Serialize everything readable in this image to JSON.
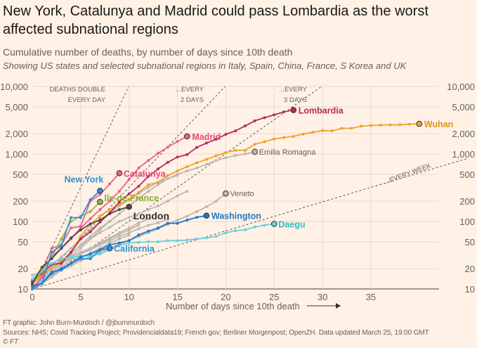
{
  "title": "New York, Catalunya and Madrid could pass Lombardia as the worst affected subnational regions",
  "subtitle": "Cumulative number of deaths, by number of days since 10th death",
  "subtitle2": "Showing US states and selected subnational regions in Italy, Spain, China, France, S Korea and UK",
  "footer": {
    "credit": "FT graphic: John Burn-Murdoch / @jburnmurdoch",
    "sources": "Sources: NHS; Covid Tracking Project; Providencialdata19; French gov; Berliner Morgenpost; OpenZH. Data updated March 25, 19:00 GMT",
    "copyright": "© FT"
  },
  "chart_data": {
    "type": "line",
    "xlabel": "Number of days since 10th death",
    "ylabel": "",
    "xlim": [
      0,
      43
    ],
    "ylim": [
      10,
      10000
    ],
    "yscale": "log",
    "grid": true,
    "xticks": [
      "0",
      "5",
      "10",
      "15",
      "20",
      "25",
      "30",
      "35"
    ],
    "yticks": [
      "10",
      "20",
      "50",
      "100",
      "200",
      "500",
      "1,000",
      "2,000",
      "5,000",
      "10,000"
    ],
    "reference_lines": [
      {
        "label1": "DEATHS DOUBLE",
        "label2": "EVERY DAY",
        "doubling_days": 1
      },
      {
        "label1": "...EVERY",
        "label2": "2 DAYS",
        "doubling_days": 2
      },
      {
        "label1": "...EVERY",
        "label2": "3 DAYS",
        "doubling_days": 3
      },
      {
        "label1": "...EVERY WEEK",
        "label2": "",
        "doubling_days": 7
      }
    ],
    "series": [
      {
        "color": "#bdb8b4",
        "values": [
          11,
          14,
          18,
          24,
          33,
          45,
          60,
          80,
          100,
          130,
          170,
          220,
          280
        ]
      },
      {
        "color": "#bdb8b4",
        "values": [
          12,
          15,
          20,
          26,
          34,
          44,
          55,
          68,
          82,
          100,
          115,
          130,
          150,
          170,
          200,
          240,
          280
        ]
      },
      {
        "color": "#bdb8b4",
        "values": [
          10,
          13,
          17,
          21,
          27,
          33,
          40,
          48,
          57,
          68,
          80,
          95,
          110
        ]
      },
      {
        "color": "#bdb8b4",
        "values": [
          14,
          17,
          20,
          24,
          28,
          33,
          38,
          45,
          52,
          60,
          68,
          78,
          88,
          95,
          108
        ]
      },
      {
        "color": "#bdb8b4",
        "values": [
          16,
          18,
          22,
          26,
          30,
          35,
          40,
          47,
          55,
          65,
          75,
          88
        ]
      },
      {
        "color": "#bdb8b4",
        "values": [
          11,
          12,
          15,
          19,
          23,
          28,
          34,
          40,
          48,
          55,
          63
        ]
      },
      {
        "color": "#bdb8b4",
        "values": [
          13,
          16,
          22,
          30,
          40,
          55,
          75,
          100,
          135,
          170,
          210,
          260,
          320,
          380,
          430,
          480
        ]
      },
      {
        "name": "Veneto",
        "color": "#bdb8b4",
        "label_color": "#66605c",
        "bold": false,
        "values": [
          11,
          13,
          16,
          19,
          22,
          26,
          30,
          35,
          40,
          46,
          52,
          60,
          68,
          78,
          90,
          105,
          120,
          140,
          165,
          200,
          260
        ]
      },
      {
        "name": "Emilia Romagna",
        "color": "#bdb8b4",
        "label_color": "#66605c",
        "bold": false,
        "values": [
          11,
          14,
          18,
          23,
          30,
          40,
          55,
          75,
          100,
          130,
          170,
          220,
          280,
          350,
          430,
          500,
          560,
          620,
          700,
          800,
          880,
          950,
          1000,
          1080
        ]
      },
      {
        "name": "Wuhan",
        "color": "#f2a22b",
        "label_color": "#e2901a",
        "bold": true,
        "values": [
          12,
          16,
          20,
          26,
          35,
          60,
          90,
          120,
          150,
          180,
          210,
          270,
          350,
          380,
          480,
          560,
          650,
          740,
          830,
          940,
          1050,
          1130,
          1130,
          1390,
          1520,
          1670,
          1750,
          1820,
          1970,
          2100,
          2220,
          2200,
          2400,
          2400,
          2580,
          2640,
          2680,
          2700,
          2710,
          2760,
          2800
        ]
      },
      {
        "name": "Lombardia",
        "color": "#b72b5b",
        "label_color": "#b72b5b",
        "bold": true,
        "values": [
          13,
          17,
          23,
          24,
          35,
          55,
          70,
          98,
          133,
          195,
          256,
          333,
          466,
          600,
          750,
          900,
          980,
          1250,
          1450,
          1650,
          1950,
          2200,
          2600,
          3100,
          3450,
          3800,
          4200,
          4474
        ]
      },
      {
        "name": "Madrid",
        "color": "#ec5f8f",
        "label_color": "#e5467c",
        "bold": true,
        "values": [
          10,
          15,
          30,
          40,
          55,
          80,
          110,
          150,
          200,
          280,
          420,
          620,
          800,
          1020,
          1260,
          1530,
          1825
        ]
      },
      {
        "name": "Catalunya",
        "color": "#ec5f8f",
        "label_color": "#e5467c",
        "bold": true,
        "values": [
          12,
          18,
          40,
          45,
          80,
          85,
          200,
          250,
          360,
          520
        ]
      },
      {
        "name": "Daegu",
        "color": "#67d1dc",
        "label_color": "#2fb9c6",
        "bold": true,
        "values": [
          14,
          20,
          24,
          28,
          30,
          30,
          31,
          33,
          38,
          44,
          48,
          49,
          50,
          50,
          52,
          52,
          53,
          55,
          57,
          60,
          68,
          73,
          75,
          83,
          88,
          92
        ]
      },
      {
        "name": "California",
        "color": "#2f8fd8",
        "label_color": "#2f8fd8",
        "bold": true,
        "values": [
          11,
          12,
          18,
          19,
          24,
          28,
          28,
          38,
          40
        ]
      },
      {
        "name": "Washington",
        "color": "#1f78c8",
        "label_color": "#1f78c8",
        "bold": true,
        "values": [
          11,
          12,
          17,
          20,
          24,
          30,
          33,
          38,
          45,
          48,
          52,
          63,
          72,
          80,
          94,
          94,
          105,
          115,
          122
        ]
      },
      {
        "name": "Ile-de-France",
        "color": "#96b840",
        "label_color": "#8aad33",
        "bold": true,
        "values": [
          12,
          18,
          30,
          55,
          100,
          120,
          140,
          195
        ]
      },
      {
        "name": "London",
        "color": "#4d4845",
        "label_color": "#33302e",
        "bold": true,
        "values": [
          12,
          21,
          28,
          40,
          57,
          75,
          92,
          105,
          130,
          150,
          165
        ]
      },
      {
        "name": "New York",
        "color": "#2f8fd8",
        "label_color": "#2f8fd8",
        "bold": true,
        "values": [
          10,
          12,
          35,
          44,
          114,
          114,
          210,
          285
        ]
      }
    ]
  }
}
